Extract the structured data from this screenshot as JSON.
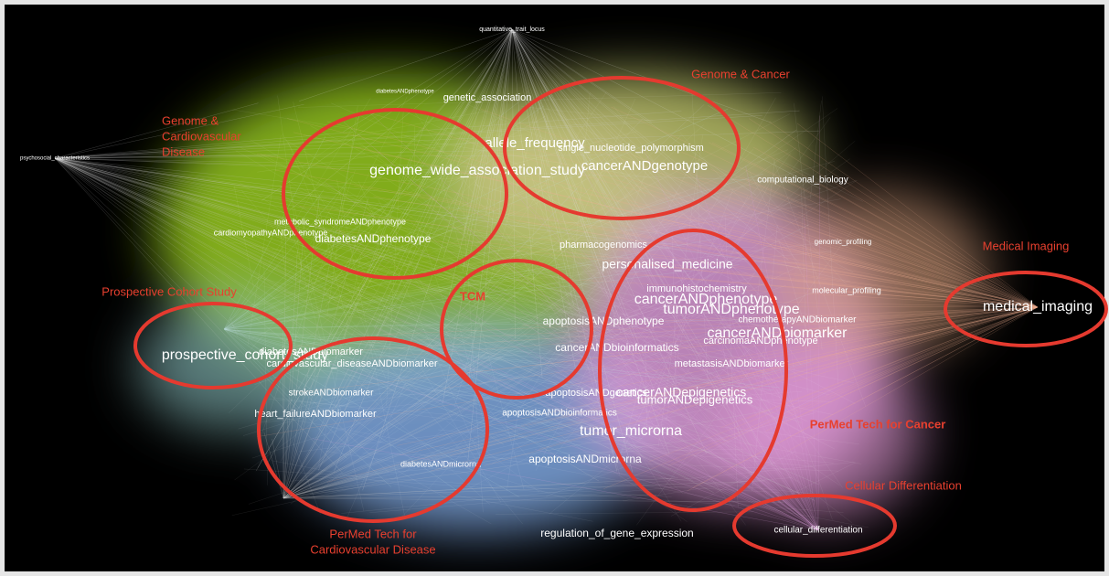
{
  "annotations": [
    {
      "lines": [
        "Genome & Cancer"
      ]
    },
    {
      "lines": [
        "Genome &",
        "Cardiovascular",
        "Disease"
      ]
    },
    {
      "lines": [
        "TCM"
      ]
    },
    {
      "lines": [
        "Prospective Cohort Study"
      ]
    },
    {
      "lines": [
        "Medical Imaging"
      ]
    },
    {
      "lines": [
        "PerMed Tech for Cancer"
      ]
    },
    {
      "lines": [
        "Cellular Differentiation"
      ]
    },
    {
      "lines": [
        "PerMed Tech for",
        "Cardiovascular Disease"
      ]
    }
  ],
  "nodes": [
    {
      "label": "quantitative_trait_locus"
    },
    {
      "label": "psychosocial_characteristics"
    },
    {
      "label": "genetic_association"
    },
    {
      "label": "diabetesANDphenotype"
    },
    {
      "label": "allele_frequency"
    },
    {
      "label": "single_nucleotide_polymorphism"
    },
    {
      "label": "genome_wide_association_study"
    },
    {
      "label": "cancerANDgenotype"
    },
    {
      "label": "computational_biology"
    },
    {
      "label": "diabetesANDphenotype"
    },
    {
      "label": "cardiomyopathyANDphenotype"
    },
    {
      "label": "metabolic_syndromeANDphenotype"
    },
    {
      "label": "pharmacogenomics"
    },
    {
      "label": "personalised_medicine"
    },
    {
      "label": "genomic_profiling"
    },
    {
      "label": "immunohistochemistry"
    },
    {
      "label": "cancerANDphenotype"
    },
    {
      "label": "tumorANDphenotype"
    },
    {
      "label": "molecular_profiling"
    },
    {
      "label": "apoptosisANDphenotype"
    },
    {
      "label": "chemotherapyANDbiomarker"
    },
    {
      "label": "cancerANDbiomarker"
    },
    {
      "label": "carcinomaANDphenotype"
    },
    {
      "label": "cancerANDbioinformatics"
    },
    {
      "label": "prospective_cohort_study"
    },
    {
      "label": "diabetesANDbiomarker"
    },
    {
      "label": "cardiovascular_diseaseANDbiomarker"
    },
    {
      "label": "metastasisANDbiomarker"
    },
    {
      "label": "apoptosisANDgenetics"
    },
    {
      "label": "cancerANDepigenetics"
    },
    {
      "label": "tumorANDepigenetics"
    },
    {
      "label": "strokeANDbiomarker"
    },
    {
      "label": "heart_failureANDbiomarker"
    },
    {
      "label": "apoptosisANDbioinformatics"
    },
    {
      "label": "tumor_microrna"
    },
    {
      "label": "apoptosisANDmicrorna"
    },
    {
      "label": "diabetesANDmicrorna"
    },
    {
      "label": "regulation_of_gene_expression"
    },
    {
      "label": "cellular_differentiation"
    },
    {
      "label": "medical_imaging"
    }
  ]
}
